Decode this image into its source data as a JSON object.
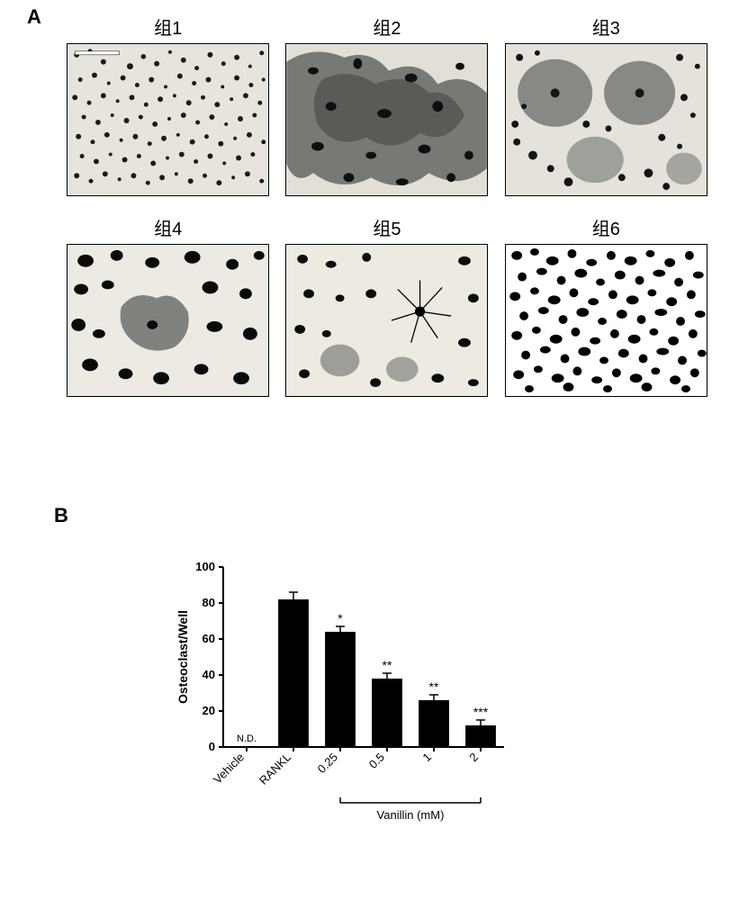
{
  "panelA": {
    "label": "A",
    "groups": [
      "组1",
      "组2",
      "组3",
      "组4",
      "组5",
      "组6"
    ],
    "background": "#e8e6de",
    "darkFill": "#1a1a1a",
    "greyFill": "#7a7a78"
  },
  "panelB": {
    "label": "B",
    "chart": {
      "type": "bar",
      "ylabel": "Osteoclast/Well",
      "ylim": [
        0,
        100
      ],
      "ytick_step": 20,
      "categories": [
        "Vehicle",
        "RANKL",
        "0.25",
        "0.5",
        "1",
        "2"
      ],
      "values": [
        0,
        82,
        64,
        38,
        26,
        12
      ],
      "errors": [
        0,
        4,
        3,
        3,
        3,
        3
      ],
      "annotations": [
        "N.D.",
        "",
        "*",
        "**",
        "**",
        "***"
      ],
      "bar_color": "#000000",
      "axis_color": "#000000",
      "background": "#ffffff",
      "label_fontsize": 13,
      "axis_title_fontsize": 14,
      "bar_width": 0.65,
      "bracket_label": "Vanillin (mM)",
      "bracket_start_index": 2,
      "bracket_end_index": 5
    }
  }
}
